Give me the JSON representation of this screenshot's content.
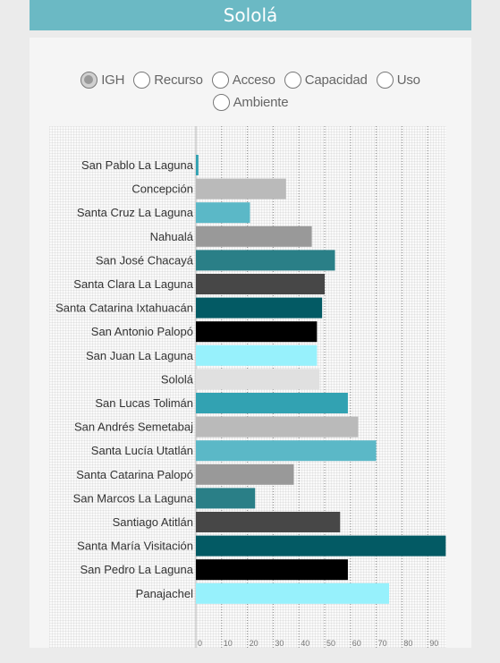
{
  "header": {
    "title": "Sololá"
  },
  "radios": {
    "options": [
      {
        "label": "IGH",
        "selected": true
      },
      {
        "label": "Recurso",
        "selected": false
      },
      {
        "label": "Acceso",
        "selected": false
      },
      {
        "label": "Capacidad",
        "selected": false
      },
      {
        "label": "Uso",
        "selected": false
      },
      {
        "label": "Ambiente",
        "selected": false
      }
    ]
  },
  "chart_data": {
    "type": "bar",
    "orientation": "horizontal",
    "title": "",
    "xlabel": "",
    "ylabel": "",
    "xlim": [
      0,
      100
    ],
    "ticks": [
      0,
      10,
      20,
      30,
      40,
      50,
      60,
      70,
      80,
      90
    ],
    "tick_labels": [
      "0",
      "10",
      "20",
      "30",
      "40",
      "50",
      "60",
      "70",
      "80",
      "90"
    ],
    "grid": true,
    "categories": [
      "San Pablo La Laguna",
      "Concepción",
      "Santa Cruz La Laguna",
      "Nahualá",
      "San José Chacayá",
      "Santa Clara La Laguna",
      "Santa Catarina Ixtahuacán",
      "San Antonio Palopó",
      "San Juan La Laguna",
      "Sololá",
      "San Lucas Tolimán",
      "San Andrés Semetabaj",
      "Santa Lucía Utatlán",
      "Santa Catarina Palopó",
      "San Marcos La Laguna",
      "Santiago Atitlán",
      "Santa María Visitación",
      "San Pedro La Laguna",
      "Panajachel"
    ],
    "values": [
      1,
      35,
      21,
      45,
      54,
      50,
      49,
      47,
      47,
      48,
      59,
      63,
      70,
      38,
      23,
      56,
      97,
      59,
      75
    ],
    "colors": [
      "#32a2b2",
      "#bababa",
      "#5bb8c7",
      "#999999",
      "#2a7f87",
      "#474747",
      "#035a64",
      "#000000",
      "#97f1fc",
      "#e0e0e0",
      "#32a2b2",
      "#bababa",
      "#5bb8c7",
      "#999999",
      "#2a7f87",
      "#474747",
      "#035a64",
      "#000000",
      "#97f1fc"
    ]
  }
}
